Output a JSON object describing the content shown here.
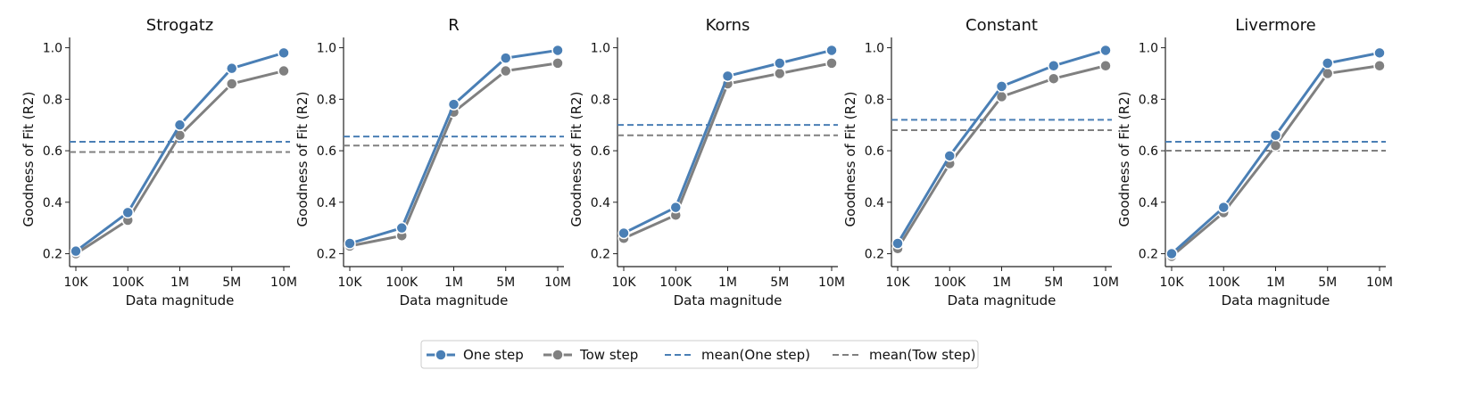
{
  "figure": {
    "legend": [
      {
        "label": "One step",
        "kind": "line-marker",
        "series": "one"
      },
      {
        "label": "Tow step",
        "kind": "line-marker",
        "series": "two"
      },
      {
        "label": "mean(One step)",
        "kind": "dashed",
        "series": "one"
      },
      {
        "label": "mean(Tow step)",
        "kind": "dashed",
        "series": "two"
      }
    ],
    "colors": {
      "one": "#4a7fb5",
      "two": "#808080"
    }
  },
  "chart_data": [
    {
      "type": "line",
      "title": "Strogatz",
      "xlabel": "Data magnitude",
      "ylabel": "Goodness of Fit (R2)",
      "categories": [
        "10K",
        "100K",
        "1M",
        "5M",
        "10M"
      ],
      "yticks": [
        "0.2",
        "0.4",
        "0.6",
        "0.8",
        "1.0"
      ],
      "ylim": [
        0.15,
        1.04
      ],
      "series": [
        {
          "name": "One step",
          "values": [
            0.21,
            0.36,
            0.7,
            0.92,
            0.98
          ]
        },
        {
          "name": "Tow step",
          "values": [
            0.2,
            0.33,
            0.66,
            0.86,
            0.91
          ]
        }
      ],
      "means": [
        {
          "name": "mean(One step)",
          "value": 0.635
        },
        {
          "name": "mean(Tow step)",
          "value": 0.595
        }
      ]
    },
    {
      "type": "line",
      "title": "R",
      "xlabel": "Data magnitude",
      "ylabel": "Goodness of Fit (R2)",
      "categories": [
        "10K",
        "100K",
        "1M",
        "5M",
        "10M"
      ],
      "yticks": [
        "0.2",
        "0.4",
        "0.6",
        "0.8",
        "1.0"
      ],
      "ylim": [
        0.15,
        1.04
      ],
      "series": [
        {
          "name": "One step",
          "values": [
            0.24,
            0.3,
            0.78,
            0.96,
            0.99
          ]
        },
        {
          "name": "Tow step",
          "values": [
            0.23,
            0.27,
            0.75,
            0.91,
            0.94
          ]
        }
      ],
      "means": [
        {
          "name": "mean(One step)",
          "value": 0.655
        },
        {
          "name": "mean(Tow step)",
          "value": 0.62
        }
      ]
    },
    {
      "type": "line",
      "title": "Korns",
      "xlabel": "Data magnitude",
      "ylabel": "Goodness of Fit (R2)",
      "categories": [
        "10K",
        "100K",
        "1M",
        "5M",
        "10M"
      ],
      "yticks": [
        "0.2",
        "0.4",
        "0.6",
        "0.8",
        "1.0"
      ],
      "ylim": [
        0.15,
        1.04
      ],
      "series": [
        {
          "name": "One step",
          "values": [
            0.28,
            0.38,
            0.89,
            0.94,
            0.99
          ]
        },
        {
          "name": "Tow step",
          "values": [
            0.26,
            0.35,
            0.86,
            0.9,
            0.94
          ]
        }
      ],
      "means": [
        {
          "name": "mean(One step)",
          "value": 0.7
        },
        {
          "name": "mean(Tow step)",
          "value": 0.66
        }
      ]
    },
    {
      "type": "line",
      "title": "Constant",
      "xlabel": "Data magnitude",
      "ylabel": "Goodness of Fit (R2)",
      "categories": [
        "10K",
        "100K",
        "1M",
        "5M",
        "10M"
      ],
      "yticks": [
        "0.2",
        "0.4",
        "0.6",
        "0.8",
        "1.0"
      ],
      "ylim": [
        0.15,
        1.04
      ],
      "series": [
        {
          "name": "One step",
          "values": [
            0.24,
            0.58,
            0.85,
            0.93,
            0.99
          ]
        },
        {
          "name": "Tow step",
          "values": [
            0.22,
            0.55,
            0.81,
            0.88,
            0.93
          ]
        }
      ],
      "means": [
        {
          "name": "mean(One step)",
          "value": 0.72
        },
        {
          "name": "mean(Tow step)",
          "value": 0.68
        }
      ]
    },
    {
      "type": "line",
      "title": "Livermore",
      "xlabel": "Data magnitude",
      "ylabel": "Goodness of Fit (R2)",
      "categories": [
        "10K",
        "100K",
        "1M",
        "5M",
        "10M"
      ],
      "yticks": [
        "0.2",
        "0.4",
        "0.6",
        "0.8",
        "1.0"
      ],
      "ylim": [
        0.15,
        1.04
      ],
      "series": [
        {
          "name": "One step",
          "values": [
            0.2,
            0.38,
            0.66,
            0.94,
            0.98
          ]
        },
        {
          "name": "Tow step",
          "values": [
            0.19,
            0.36,
            0.62,
            0.9,
            0.93
          ]
        }
      ],
      "means": [
        {
          "name": "mean(One step)",
          "value": 0.635
        },
        {
          "name": "mean(Tow step)",
          "value": 0.6
        }
      ]
    }
  ]
}
